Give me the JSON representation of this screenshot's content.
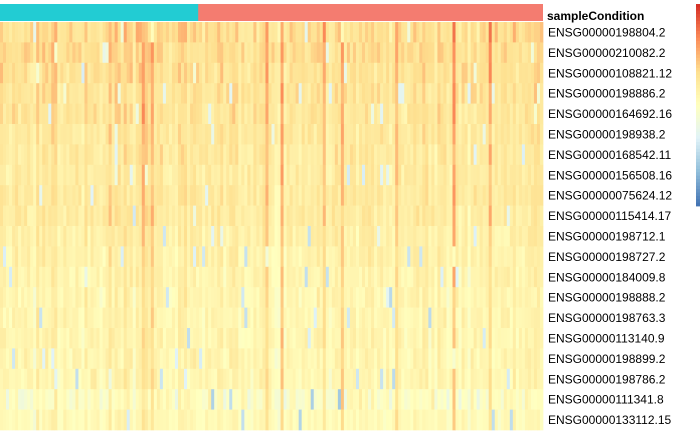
{
  "chart_data": {
    "type": "heatmap",
    "annotation_label": "sampleCondition",
    "annotation_groups": [
      {
        "color": "#22ccd3",
        "fraction": 0.365
      },
      {
        "color": "#f47c70",
        "fraction": 0.635
      }
    ],
    "row_labels": [
      "ENSG00000198804.2",
      "ENSG00000210082.2",
      "ENSG00000108821.12",
      "ENSG00000198886.2",
      "ENSG00000164692.16",
      "ENSG00000198938.2",
      "ENSG00000168542.11",
      "ENSG00000156508.16",
      "ENSG00000075624.12",
      "ENSG00000115414.17",
      "ENSG00000198712.1",
      "ENSG00000198727.2",
      "ENSG00000184009.8",
      "ENSG00000198888.2",
      "ENSG00000198763.3",
      "ENSG00000113140.9",
      "ENSG00000198899.2",
      "ENSG00000198786.2",
      "ENSG00000111341.8",
      "ENSG00000133112.15"
    ],
    "column_count": 180,
    "color_scale": [
      "#4575b4",
      "#91bfdb",
      "#e0f3f8",
      "#ffffbf",
      "#fee090",
      "#fc8d59",
      "#d73027"
    ],
    "row_profiles": [
      {
        "mean": 0.66,
        "spread": 0.18
      },
      {
        "mean": 0.66,
        "spread": 0.16
      },
      {
        "mean": 0.65,
        "spread": 0.15
      },
      {
        "mean": 0.64,
        "spread": 0.14
      },
      {
        "mean": 0.63,
        "spread": 0.14
      },
      {
        "mean": 0.62,
        "spread": 0.13
      },
      {
        "mean": 0.61,
        "spread": 0.13
      },
      {
        "mean": 0.6,
        "spread": 0.12
      },
      {
        "mean": 0.61,
        "spread": 0.12
      },
      {
        "mean": 0.6,
        "spread": 0.14
      },
      {
        "mean": 0.58,
        "spread": 0.13
      },
      {
        "mean": 0.57,
        "spread": 0.12
      },
      {
        "mean": 0.56,
        "spread": 0.11
      },
      {
        "mean": 0.55,
        "spread": 0.12
      },
      {
        "mean": 0.55,
        "spread": 0.12
      },
      {
        "mean": 0.55,
        "spread": 0.12
      },
      {
        "mean": 0.55,
        "spread": 0.12
      },
      {
        "mean": 0.55,
        "spread": 0.12
      },
      {
        "mean": 0.5,
        "spread": 0.2
      },
      {
        "mean": 0.53,
        "spread": 0.08
      }
    ],
    "hot_columns": [
      36,
      41,
      47,
      48,
      50,
      88,
      93,
      107,
      113,
      131,
      150,
      162
    ],
    "legend": "right, color bar (clipped)"
  }
}
